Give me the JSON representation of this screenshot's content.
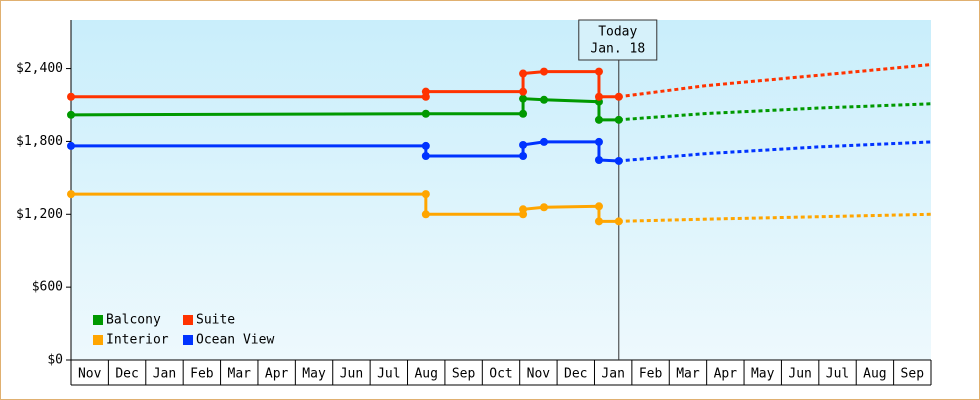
{
  "chart_data": {
    "type": "step-line",
    "categories": [
      "Nov",
      "Dec",
      "Jan",
      "Feb",
      "Mar",
      "Apr",
      "May",
      "Jun",
      "Jul",
      "Aug",
      "Sep",
      "Oct",
      "Nov",
      "Dec",
      "Jan",
      "Feb",
      "Mar",
      "Apr",
      "May",
      "Jun",
      "Jul",
      "Aug",
      "Sep"
    ],
    "xlim": [
      0,
      23
    ],
    "ylim": [
      0,
      2800
    ],
    "yticks": [
      {
        "value": 0,
        "label": "$0"
      },
      {
        "value": 600,
        "label": "$600"
      },
      {
        "value": 1200,
        "label": "$1,200"
      },
      {
        "value": 1800,
        "label": "$1,800"
      },
      {
        "value": 2400,
        "label": "$2,400"
      }
    ],
    "legend": "bottom-left",
    "annotation": {
      "x": 14.65,
      "lines": [
        "Today",
        "Jan. 18"
      ]
    },
    "series": [
      {
        "name": "Balcony",
        "color": "#009900",
        "x": [
          0,
          9.49,
          12.09,
          12.09,
          12.65,
          14.12,
          14.12,
          14.65
        ],
        "values": [
          2019,
          2028,
          2028,
          2152,
          2143,
          2127,
          1978,
          1978
        ],
        "forecast": {
          "x": [
            14.65,
            17,
            20,
            23
          ],
          "values": [
            1978,
            2030,
            2075,
            2110
          ]
        }
      },
      {
        "name": "Suite",
        "color": "#ff3300",
        "x": [
          0,
          9.49,
          9.49,
          12.09,
          12.09,
          12.65,
          14.12,
          14.12,
          14.65
        ],
        "values": [
          2168,
          2168,
          2210,
          2210,
          2359,
          2375,
          2375,
          2168,
          2168
        ],
        "forecast": {
          "x": [
            14.65,
            17,
            20,
            23
          ],
          "values": [
            2168,
            2260,
            2345,
            2433
          ]
        }
      },
      {
        "name": "Interior",
        "color": "#ffa500",
        "x": [
          0,
          9.49,
          9.49,
          12.09,
          12.09,
          12.65,
          14.12,
          14.12,
          14.65
        ],
        "values": [
          1366,
          1366,
          1200,
          1200,
          1241,
          1258,
          1266,
          1142,
          1142
        ],
        "forecast": {
          "x": [
            14.65,
            17,
            20,
            23
          ],
          "values": [
            1142,
            1160,
            1180,
            1200
          ]
        }
      },
      {
        "name": "Ocean View",
        "color": "#0033ff",
        "x": [
          0,
          9.49,
          9.49,
          12.09,
          12.09,
          12.65,
          14.12,
          14.12,
          14.65
        ],
        "values": [
          1763,
          1763,
          1680,
          1680,
          1771,
          1796,
          1796,
          1647,
          1639
        ],
        "forecast": {
          "x": [
            14.65,
            17,
            20,
            23
          ],
          "values": [
            1639,
            1700,
            1755,
            1796
          ]
        }
      }
    ]
  }
}
